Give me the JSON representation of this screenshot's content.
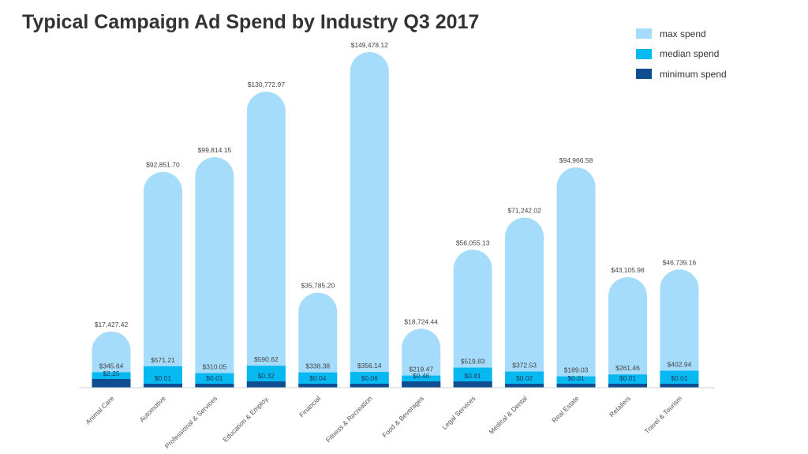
{
  "chart_data": {
    "type": "bar",
    "title": "Typical Campaign Ad Spend by Industry Q3 2017",
    "xlabel": "",
    "ylabel": "",
    "categories": [
      "Animal Care",
      "Automotive",
      "Professional & Services",
      "Education & Employ.",
      "Financial",
      "Fitness & Recreation",
      "Food & Beverages",
      "Legal Services",
      "Medical & Dental",
      "Real Estate",
      "Retailers",
      "Travel & Tourism"
    ],
    "series": [
      {
        "name": "max spend",
        "color": "#a6dcfb",
        "values": [
          17427.42,
          92851.7,
          99814.15,
          130772.97,
          35785.2,
          149478.12,
          18724.44,
          56055.13,
          71242.02,
          94966.58,
          43105.98,
          46739.16
        ],
        "labels": [
          "$17,427.42",
          "$92,851.70",
          "$99,814.15",
          "$130,772.97",
          "$35,785.20",
          "$149,478.12",
          "$18,724.44",
          "$56,055.13",
          "$71,242.02",
          "$94,966.58",
          "$43,105.98",
          "$46,739.16"
        ]
      },
      {
        "name": "median spend",
        "color": "#06b9f0",
        "values": [
          345.64,
          571.21,
          310.05,
          590.62,
          338.38,
          356.14,
          219.47,
          519.83,
          372.53,
          189.03,
          261.46,
          402.94
        ],
        "labels": [
          "$345.64",
          "$571.21",
          "$310.05",
          "$590.62",
          "$338.38",
          "$356.14",
          "$219.47",
          "$519.83",
          "$372.53",
          "$189.03",
          "$261.46",
          "$402.94"
        ]
      },
      {
        "name": "minimum spend",
        "color": "#0f4f91",
        "values": [
          2.25,
          0.01,
          0.01,
          0.32,
          0.04,
          0.06,
          0.46,
          0.81,
          0.02,
          0.01,
          0.01,
          0.01
        ],
        "labels": [
          "$2.25",
          "$0.01",
          "$0.01",
          "$0.32",
          "$0.04",
          "$0.06",
          "$0.46",
          "$0.81",
          "$0.02",
          "$0.01",
          "$0.01",
          "$0.01"
        ]
      }
    ],
    "legend_position": "top-right",
    "grid": false
  }
}
